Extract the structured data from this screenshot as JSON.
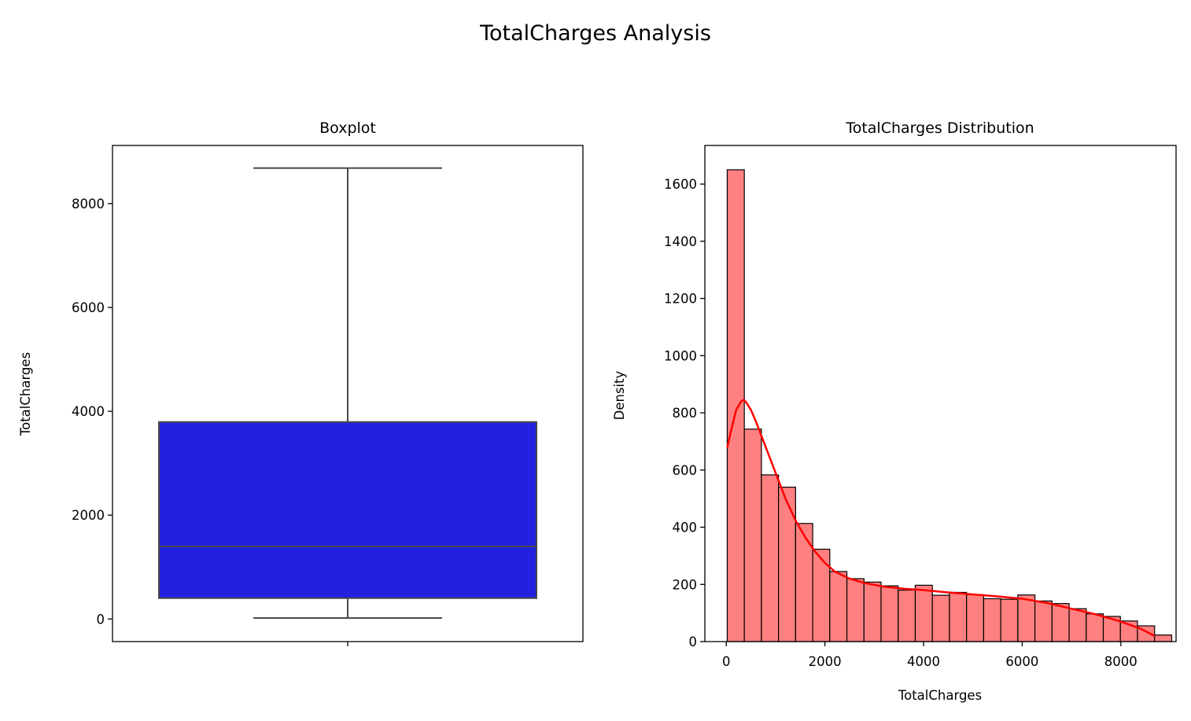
{
  "figure": {
    "suptitle": "TotalCharges Analysis"
  },
  "chart_data": [
    {
      "type": "box",
      "title": "Boxplot",
      "xlabel": "",
      "ylabel": "TotalCharges",
      "ylim": [
        -435,
        9120
      ],
      "yticks": [
        0,
        2000,
        4000,
        6000,
        8000
      ],
      "box": {
        "min": 18.8,
        "q1": 401.45,
        "median": 1397.47,
        "q3": 3794.74,
        "max": 8684.8
      },
      "box_color": "#2121de",
      "line_color": "#4a4a4a"
    },
    {
      "type": "bar",
      "subtype": "histogram_with_kde",
      "title": "TotalCharges Distribution",
      "xlabel": "TotalCharges",
      "ylabel": "Density",
      "xlim": [
        -435,
        9120
      ],
      "ylim": [
        0,
        1735
      ],
      "xticks": [
        0,
        2000,
        4000,
        6000,
        8000
      ],
      "yticks": [
        0,
        200,
        400,
        600,
        800,
        1000,
        1200,
        1400,
        1600
      ],
      "bin_start": 18.8,
      "bin_width": 346.64,
      "values": [
        1650,
        743,
        583,
        540,
        413,
        323,
        245,
        220,
        208,
        195,
        180,
        197,
        162,
        172,
        164,
        150,
        148,
        163,
        142,
        133,
        115,
        97,
        88,
        72,
        55,
        23
      ],
      "bar_color": "#ff8080",
      "edge_color": "#000000",
      "kde": {
        "color": "#ff0000",
        "x": [
          18.8,
          100,
          200,
          300,
          350,
          400,
          500,
          600,
          700,
          800,
          900,
          1000,
          1200,
          1400,
          1600,
          1800,
          2000,
          2200,
          2500,
          2800,
          3200,
          3600,
          4000,
          4500,
          5000,
          5500,
          6000,
          6500,
          7000,
          7500,
          8000,
          8400,
          8684.8
        ],
        "y": [
          678,
          740,
          810,
          840,
          845,
          838,
          810,
          770,
          725,
          680,
          635,
          590,
          500,
          425,
          365,
          315,
          275,
          245,
          220,
          205,
          192,
          185,
          180,
          172,
          165,
          158,
          150,
          135,
          115,
          95,
          70,
          45,
          20
        ]
      }
    }
  ]
}
